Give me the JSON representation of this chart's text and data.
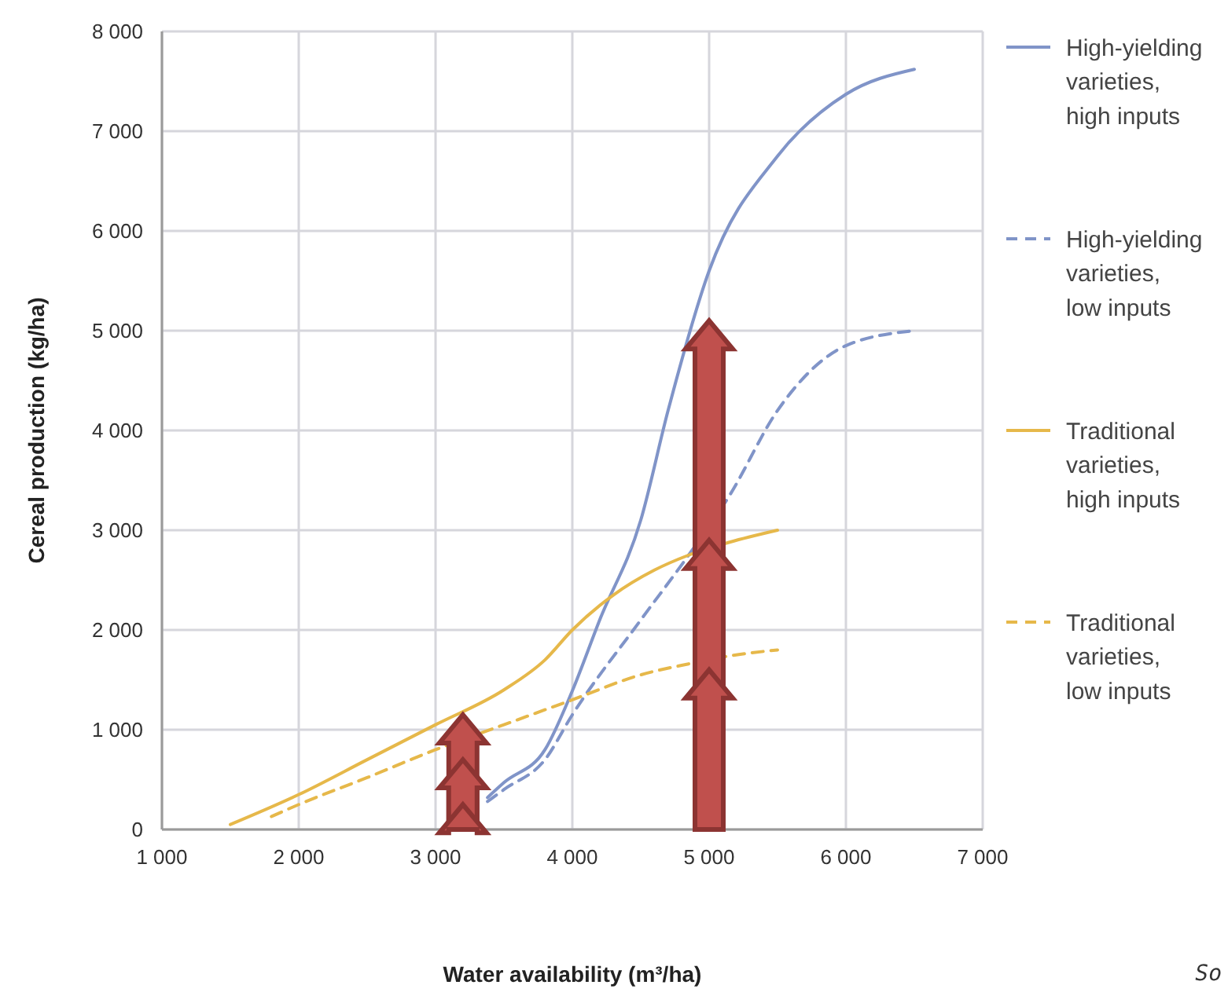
{
  "chart_data": {
    "type": "line",
    "xlabel": "Water availability (m³/ha)",
    "ylabel": "Cereal production (kg/ha)",
    "xlim": [
      1000,
      7000
    ],
    "xticks": [
      {
        "value": 1000,
        "label": "1 000"
      },
      {
        "value": 2000,
        "label": "2 000"
      },
      {
        "value": 3000,
        "label": "3 000"
      },
      {
        "value": 4000,
        "label": "4 000"
      },
      {
        "value": 5000,
        "label": "5 000"
      },
      {
        "value": 6000,
        "label": "6 000"
      },
      {
        "value": 7000,
        "label": "7 000"
      }
    ],
    "ylim": [
      0,
      8000
    ],
    "yticks": [
      0,
      {
        "value": 1000,
        "label": "1 000"
      },
      {
        "value": 2000,
        "label": "2 000"
      },
      {
        "value": 3000,
        "label": "3 000"
      },
      {
        "value": 4000,
        "label": "4 000"
      },
      {
        "value": 5000,
        "label": "5 000"
      },
      {
        "value": 6000,
        "label": "6 000"
      },
      {
        "value": 7000,
        "label": "7 000"
      },
      {
        "value": 8000,
        "label": "8 000"
      }
    ],
    "grid": true,
    "legend": "right",
    "marker": "none",
    "annotations": [
      "So"
    ],
    "series": [
      {
        "name": "High-yielding varieties, high inputs",
        "color": "#8094c8",
        "line_style": "solid",
        "x": [
          3380,
          3500,
          3800,
          4000,
          4200,
          4500,
          4700,
          5000,
          5500,
          6000,
          6500
        ],
        "values": [
          320,
          470,
          800,
          1390,
          2100,
          3100,
          4200,
          5600,
          6750,
          7370,
          7620
        ]
      },
      {
        "name": "High-yielding varieties, low inputs",
        "color": "#8094c8",
        "line_style": "dashed",
        "x": [
          3380,
          3500,
          3800,
          4000,
          4500,
          4850,
          5150,
          5500,
          6000,
          6500
        ],
        "values": [
          280,
          400,
          700,
          1150,
          2100,
          2750,
          3350,
          4200,
          4850,
          5000
        ]
      },
      {
        "name": "Traditional varieties, high inputs",
        "color": "#e6b84a",
        "line_style": "solid",
        "x": [
          1500,
          2000,
          2500,
          3000,
          3500,
          3800,
          4000,
          4300,
          4600,
          4850,
          5150,
          5500
        ],
        "values": [
          50,
          350,
          700,
          1050,
          1400,
          1700,
          2000,
          2350,
          2600,
          2750,
          2880,
          3000
        ]
      },
      {
        "name": "Traditional varieties, low inputs",
        "color": "#e6b84a",
        "line_style": "dashed",
        "x": [
          1800,
          2000,
          2500,
          3000,
          3500,
          4000,
          4500,
          4850,
          5150,
          5500
        ],
        "values": [
          130,
          250,
          520,
          800,
          1050,
          1300,
          1550,
          1660,
          1740,
          1800
        ]
      }
    ]
  }
}
